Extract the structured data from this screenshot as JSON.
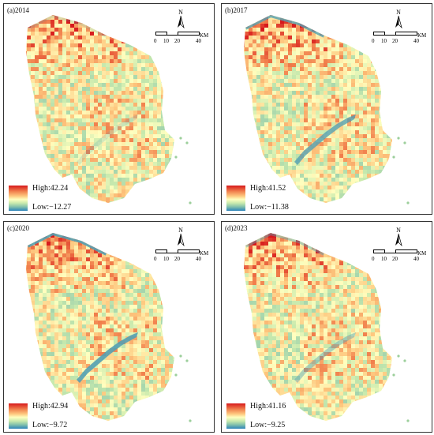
{
  "panels": [
    {
      "label": "(a)2014",
      "legend": {
        "high": "High:42.24",
        "low": "Low:−12.27"
      },
      "water": 0.2
    },
    {
      "label": "(b)2017",
      "legend": {
        "high": "High:41.52",
        "low": "Low:−11.38"
      },
      "water": 0.8
    },
    {
      "label": "(c)2020",
      "legend": {
        "high": "High:42.94",
        "low": "Low:−9.72"
      },
      "water": 0.9
    },
    {
      "label": "(d)2023",
      "legend": {
        "high": "High:41.16",
        "low": "Low:−9.25"
      },
      "water": 0.45
    }
  ],
  "north_arrow": {
    "label": "N"
  },
  "scale_bar": {
    "ticks": [
      "0",
      "10",
      "20",
      "40"
    ],
    "unit": "KM"
  },
  "colors": {
    "high": "#d7191c",
    "mid_high": "#f07c4a",
    "mid": "#ffffbf",
    "mid_low": "#abdda4",
    "low": "#2b83ba"
  }
}
